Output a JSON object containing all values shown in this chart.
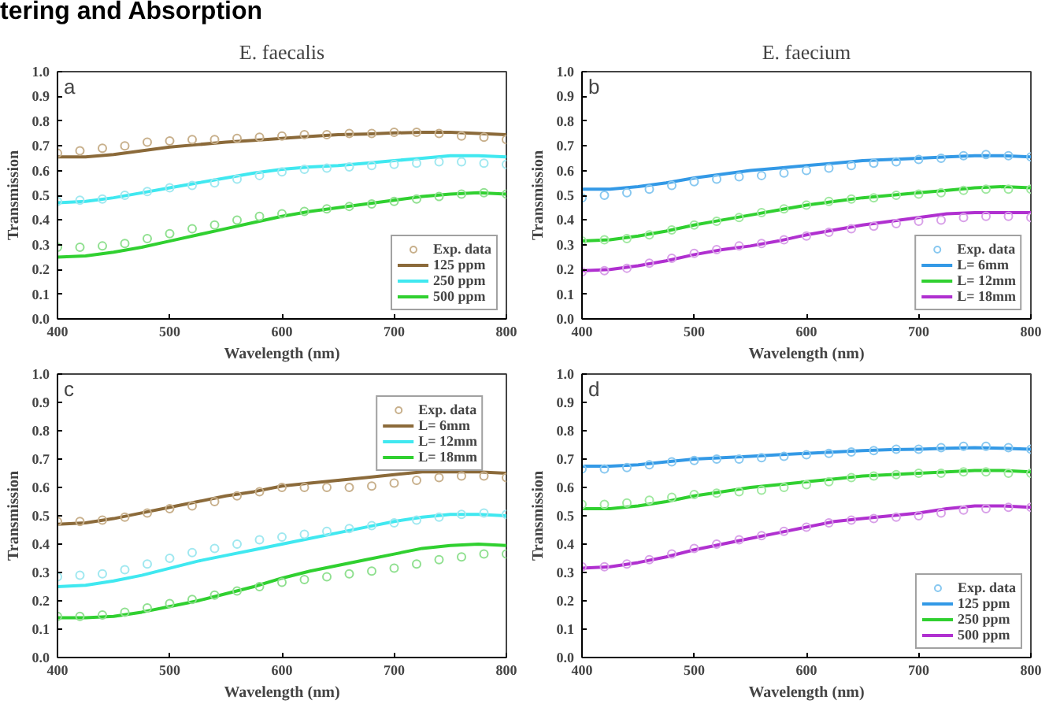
{
  "chart_data": [
    {
      "type": "scatter",
      "title": "tering and Absorption",
      "subtitle": "E. faecalis",
      "xlabel": "Wavelength (nm)",
      "ylabel": "Transmission",
      "annotations": [
        "a"
      ],
      "legend": "bottom right",
      "xlim": [
        400,
        800
      ],
      "ylim": [
        0,
        1
      ],
      "xticks": [
        400,
        500,
        600,
        700,
        800
      ],
      "yticks": [
        {
          "value": 0,
          "label": "0.0"
        },
        {
          "value": 0.1,
          "label": "0.1"
        },
        {
          "value": 0.2,
          "label": "0.2"
        },
        {
          "value": 0.3,
          "label": "0.3"
        },
        {
          "value": 0.4,
          "label": "0.4"
        },
        {
          "value": 0.5,
          "label": "0.5"
        },
        {
          "value": 0.6,
          "label": "0.6"
        },
        {
          "value": 0.7,
          "label": "0.7"
        },
        {
          "value": 0.8,
          "label": "0.8"
        },
        {
          "value": 0.9,
          "label": "0.9"
        },
        {
          "value": 1,
          "label": "1.0"
        }
      ],
      "grid": false,
      "series": [
        {
          "name": "Exp. data",
          "marker": "circle",
          "color": "#c8b08c",
          "x": [
            400,
            420,
            440,
            460,
            480,
            500,
            520,
            540,
            560,
            580,
            600,
            620,
            640,
            660,
            680,
            700,
            720,
            740,
            760,
            780,
            800
          ],
          "values": [
            0.67,
            0.68,
            0.69,
            0.7,
            0.715,
            0.72,
            0.725,
            0.725,
            0.73,
            0.735,
            0.74,
            0.745,
            0.745,
            0.75,
            0.75,
            0.755,
            0.755,
            0.75,
            0.74,
            0.735,
            0.725
          ]
        },
        {
          "marker": "circle",
          "color": "#a0e8f0",
          "x": [
            400,
            420,
            440,
            460,
            480,
            500,
            520,
            540,
            560,
            580,
            600,
            620,
            640,
            660,
            680,
            700,
            720,
            740,
            760,
            780,
            800
          ],
          "values": [
            0.475,
            0.48,
            0.485,
            0.5,
            0.515,
            0.53,
            0.54,
            0.55,
            0.565,
            0.58,
            0.595,
            0.605,
            0.61,
            0.615,
            0.62,
            0.625,
            0.63,
            0.635,
            0.635,
            0.63,
            0.625
          ]
        },
        {
          "marker": "circle",
          "color": "#90e090",
          "x": [
            400,
            420,
            440,
            460,
            480,
            500,
            520,
            540,
            560,
            580,
            600,
            620,
            640,
            660,
            680,
            700,
            720,
            740,
            760,
            780,
            800
          ],
          "values": [
            0.29,
            0.29,
            0.295,
            0.305,
            0.325,
            0.345,
            0.365,
            0.38,
            0.4,
            0.415,
            0.425,
            0.435,
            0.445,
            0.455,
            0.465,
            0.475,
            0.485,
            0.495,
            0.505,
            0.51,
            0.505
          ]
        },
        {
          "name": "125 ppm",
          "type": "line",
          "color": "#8b6a3a",
          "x": [
            400,
            425,
            450,
            475,
            500,
            525,
            550,
            575,
            600,
            625,
            650,
            675,
            700,
            725,
            750,
            775,
            800
          ],
          "values": [
            0.655,
            0.655,
            0.665,
            0.68,
            0.695,
            0.705,
            0.715,
            0.722,
            0.73,
            0.738,
            0.745,
            0.748,
            0.752,
            0.755,
            0.755,
            0.75,
            0.745
          ]
        },
        {
          "name": "250 ppm",
          "type": "line",
          "color": "#40e8f0",
          "x": [
            400,
            425,
            450,
            475,
            500,
            525,
            550,
            575,
            600,
            625,
            650,
            675,
            700,
            725,
            750,
            775,
            800
          ],
          "values": [
            0.47,
            0.475,
            0.49,
            0.51,
            0.53,
            0.55,
            0.57,
            0.59,
            0.605,
            0.615,
            0.62,
            0.63,
            0.64,
            0.65,
            0.66,
            0.66,
            0.655
          ]
        },
        {
          "name": "500 ppm",
          "type": "line",
          "color": "#30d030",
          "x": [
            400,
            425,
            450,
            475,
            500,
            525,
            550,
            575,
            600,
            625,
            650,
            675,
            700,
            725,
            750,
            775,
            800
          ],
          "values": [
            0.25,
            0.255,
            0.27,
            0.29,
            0.315,
            0.34,
            0.365,
            0.39,
            0.415,
            0.435,
            0.45,
            0.465,
            0.48,
            0.495,
            0.505,
            0.51,
            0.505
          ]
        }
      ]
    },
    {
      "type": "scatter",
      "subtitle": "E. faecium",
      "xlabel": "Wavelength (nm)",
      "ylabel": "Transmission",
      "annotations": [
        "b"
      ],
      "legend": "bottom right",
      "xlim": [
        400,
        800
      ],
      "ylim": [
        0,
        1
      ],
      "xticks": [
        400,
        500,
        600,
        700,
        800
      ],
      "yticks": [
        {
          "value": 0,
          "label": "0.0"
        },
        {
          "value": 0.1,
          "label": "0.1"
        },
        {
          "value": 0.2,
          "label": "0.2"
        },
        {
          "value": 0.3,
          "label": "0.3"
        },
        {
          "value": 0.4,
          "label": "0.4"
        },
        {
          "value": 0.5,
          "label": "0.5"
        },
        {
          "value": 0.6,
          "label": "0.6"
        },
        {
          "value": 0.7,
          "label": "0.7"
        },
        {
          "value": 0.8,
          "label": "0.8"
        },
        {
          "value": 0.9,
          "label": "0.9"
        },
        {
          "value": 1,
          "label": "1.0"
        }
      ],
      "grid": false,
      "series": [
        {
          "name": "Exp. data",
          "marker": "circle",
          "color": "#88c8f0",
          "x": [
            400,
            420,
            440,
            460,
            480,
            500,
            520,
            540,
            560,
            580,
            600,
            620,
            640,
            660,
            680,
            700,
            720,
            740,
            760,
            780,
            800
          ],
          "values": [
            0.49,
            0.5,
            0.51,
            0.525,
            0.54,
            0.555,
            0.565,
            0.575,
            0.58,
            0.59,
            0.6,
            0.61,
            0.62,
            0.63,
            0.635,
            0.645,
            0.65,
            0.66,
            0.665,
            0.66,
            0.655
          ]
        },
        {
          "marker": "circle",
          "color": "#a0e8a0",
          "x": [
            400,
            420,
            440,
            460,
            480,
            500,
            520,
            540,
            560,
            580,
            600,
            620,
            640,
            660,
            680,
            700,
            720,
            740,
            760,
            780,
            800
          ],
          "values": [
            0.315,
            0.32,
            0.325,
            0.34,
            0.36,
            0.38,
            0.395,
            0.41,
            0.43,
            0.445,
            0.46,
            0.475,
            0.485,
            0.49,
            0.5,
            0.505,
            0.51,
            0.52,
            0.525,
            0.525,
            0.525
          ]
        },
        {
          "marker": "circle",
          "color": "#d8a0e8",
          "x": [
            400,
            420,
            440,
            460,
            480,
            500,
            520,
            540,
            560,
            580,
            600,
            620,
            640,
            660,
            680,
            700,
            720,
            740,
            760,
            780,
            800
          ],
          "values": [
            0.19,
            0.195,
            0.205,
            0.225,
            0.245,
            0.265,
            0.28,
            0.295,
            0.305,
            0.32,
            0.335,
            0.35,
            0.365,
            0.375,
            0.385,
            0.395,
            0.4,
            0.41,
            0.415,
            0.415,
            0.41
          ]
        },
        {
          "name": "L= 6mm",
          "type": "line",
          "color": "#3399e6",
          "x": [
            400,
            425,
            450,
            475,
            500,
            525,
            550,
            575,
            600,
            625,
            650,
            675,
            700,
            725,
            750,
            775,
            800
          ],
          "values": [
            0.525,
            0.525,
            0.535,
            0.55,
            0.57,
            0.585,
            0.6,
            0.61,
            0.62,
            0.63,
            0.64,
            0.645,
            0.65,
            0.655,
            0.66,
            0.66,
            0.655
          ]
        },
        {
          "name": "L= 12mm",
          "type": "line",
          "color": "#30d030",
          "x": [
            400,
            425,
            450,
            475,
            500,
            525,
            550,
            575,
            600,
            625,
            650,
            675,
            700,
            725,
            750,
            775,
            800
          ],
          "values": [
            0.315,
            0.32,
            0.335,
            0.355,
            0.38,
            0.4,
            0.42,
            0.44,
            0.46,
            0.475,
            0.49,
            0.5,
            0.51,
            0.52,
            0.53,
            0.535,
            0.53
          ]
        },
        {
          "name": "L= 18mm",
          "type": "line",
          "color": "#b030d0",
          "x": [
            400,
            425,
            450,
            475,
            500,
            525,
            550,
            575,
            600,
            625,
            650,
            675,
            700,
            725,
            750,
            775,
            800
          ],
          "values": [
            0.195,
            0.2,
            0.215,
            0.235,
            0.26,
            0.28,
            0.295,
            0.315,
            0.34,
            0.36,
            0.38,
            0.395,
            0.41,
            0.425,
            0.43,
            0.43,
            0.43
          ]
        }
      ]
    },
    {
      "type": "scatter",
      "xlabel": "Wavelength (nm)",
      "ylabel": "Transmission",
      "annotations": [
        "c"
      ],
      "legend": "top right",
      "xlim": [
        400,
        800
      ],
      "ylim": [
        0,
        1
      ],
      "xticks": [
        400,
        500,
        600,
        700,
        800
      ],
      "yticks": [
        {
          "value": 0,
          "label": "0.0"
        },
        {
          "value": 0.1,
          "label": "0.1"
        },
        {
          "value": 0.2,
          "label": "0.2"
        },
        {
          "value": 0.3,
          "label": "0.3"
        },
        {
          "value": 0.4,
          "label": "0.4"
        },
        {
          "value": 0.5,
          "label": "0.5"
        },
        {
          "value": 0.6,
          "label": "0.6"
        },
        {
          "value": 0.7,
          "label": "0.7"
        },
        {
          "value": 0.8,
          "label": "0.8"
        },
        {
          "value": 0.9,
          "label": "0.9"
        },
        {
          "value": 1,
          "label": "1.0"
        }
      ],
      "grid": false,
      "series": [
        {
          "name": "Exp. data",
          "marker": "circle",
          "color": "#c8b08c",
          "x": [
            400,
            420,
            440,
            460,
            480,
            500,
            520,
            540,
            560,
            580,
            600,
            620,
            640,
            660,
            680,
            700,
            720,
            740,
            760,
            780,
            800
          ],
          "values": [
            0.48,
            0.48,
            0.485,
            0.495,
            0.51,
            0.525,
            0.535,
            0.55,
            0.57,
            0.585,
            0.6,
            0.6,
            0.6,
            0.6,
            0.605,
            0.615,
            0.625,
            0.635,
            0.64,
            0.64,
            0.635
          ]
        },
        {
          "marker": "circle",
          "color": "#a0e8f0",
          "x": [
            400,
            420,
            440,
            460,
            480,
            500,
            520,
            540,
            560,
            580,
            600,
            620,
            640,
            660,
            680,
            700,
            720,
            740,
            760,
            780,
            800
          ],
          "values": [
            0.285,
            0.29,
            0.295,
            0.31,
            0.33,
            0.35,
            0.37,
            0.385,
            0.4,
            0.415,
            0.425,
            0.435,
            0.445,
            0.455,
            0.465,
            0.475,
            0.485,
            0.495,
            0.505,
            0.51,
            0.505
          ]
        },
        {
          "marker": "circle",
          "color": "#90e090",
          "x": [
            400,
            420,
            440,
            460,
            480,
            500,
            520,
            540,
            560,
            580,
            600,
            620,
            640,
            660,
            680,
            700,
            720,
            740,
            760,
            780,
            800
          ],
          "values": [
            0.145,
            0.145,
            0.15,
            0.16,
            0.175,
            0.19,
            0.205,
            0.22,
            0.235,
            0.25,
            0.265,
            0.275,
            0.285,
            0.295,
            0.305,
            0.315,
            0.33,
            0.345,
            0.355,
            0.365,
            0.365
          ]
        },
        {
          "name": "L= 6mm",
          "type": "line",
          "color": "#8b6a3a",
          "x": [
            400,
            425,
            450,
            475,
            500,
            525,
            550,
            575,
            600,
            625,
            650,
            675,
            700,
            725,
            750,
            775,
            800
          ],
          "values": [
            0.47,
            0.475,
            0.49,
            0.51,
            0.53,
            0.55,
            0.57,
            0.585,
            0.605,
            0.615,
            0.625,
            0.635,
            0.645,
            0.655,
            0.655,
            0.655,
            0.65
          ]
        },
        {
          "name": "L= 12mm",
          "type": "line",
          "color": "#40e8f0",
          "x": [
            400,
            425,
            450,
            475,
            500,
            525,
            550,
            575,
            600,
            625,
            650,
            675,
            700,
            725,
            750,
            775,
            800
          ],
          "values": [
            0.25,
            0.255,
            0.27,
            0.29,
            0.315,
            0.34,
            0.36,
            0.38,
            0.4,
            0.42,
            0.44,
            0.46,
            0.48,
            0.495,
            0.505,
            0.505,
            0.5
          ]
        },
        {
          "name": "L= 18mm",
          "type": "line",
          "color": "#30d030",
          "x": [
            400,
            425,
            450,
            475,
            500,
            525,
            550,
            575,
            600,
            625,
            650,
            675,
            700,
            725,
            750,
            775,
            800
          ],
          "values": [
            0.14,
            0.14,
            0.145,
            0.16,
            0.18,
            0.2,
            0.225,
            0.25,
            0.28,
            0.305,
            0.325,
            0.345,
            0.365,
            0.385,
            0.395,
            0.4,
            0.395
          ]
        }
      ]
    },
    {
      "type": "scatter",
      "xlabel": "Wavelength (nm)",
      "ylabel": "Transmission",
      "annotations": [
        "d"
      ],
      "legend": "bottom right",
      "xlim": [
        400,
        800
      ],
      "ylim": [
        0,
        1
      ],
      "xticks": [
        400,
        500,
        600,
        700,
        800
      ],
      "yticks": [
        {
          "value": 0,
          "label": "0.0"
        },
        {
          "value": 0.1,
          "label": "0.1"
        },
        {
          "value": 0.2,
          "label": "0.2"
        },
        {
          "value": 0.3,
          "label": "0.3"
        },
        {
          "value": 0.4,
          "label": "0.4"
        },
        {
          "value": 0.5,
          "label": "0.5"
        },
        {
          "value": 0.6,
          "label": "0.6"
        },
        {
          "value": 0.7,
          "label": "0.7"
        },
        {
          "value": 0.8,
          "label": "0.8"
        },
        {
          "value": 0.9,
          "label": "0.9"
        },
        {
          "value": 1,
          "label": "1.0"
        }
      ],
      "grid": false,
      "series": [
        {
          "name": "Exp. data",
          "marker": "circle",
          "color": "#88c8f0",
          "x": [
            400,
            420,
            440,
            460,
            480,
            500,
            520,
            540,
            560,
            580,
            600,
            620,
            640,
            660,
            680,
            700,
            720,
            740,
            760,
            780,
            800
          ],
          "values": [
            0.665,
            0.665,
            0.67,
            0.68,
            0.69,
            0.695,
            0.7,
            0.7,
            0.705,
            0.71,
            0.715,
            0.72,
            0.725,
            0.73,
            0.735,
            0.735,
            0.74,
            0.745,
            0.745,
            0.74,
            0.735
          ]
        },
        {
          "marker": "circle",
          "color": "#a0e8a0",
          "x": [
            400,
            420,
            440,
            460,
            480,
            500,
            520,
            540,
            560,
            580,
            600,
            620,
            640,
            660,
            680,
            700,
            720,
            740,
            760,
            780,
            800
          ],
          "values": [
            0.54,
            0.54,
            0.545,
            0.555,
            0.565,
            0.575,
            0.58,
            0.585,
            0.59,
            0.6,
            0.61,
            0.62,
            0.635,
            0.64,
            0.645,
            0.65,
            0.65,
            0.655,
            0.655,
            0.65,
            0.65
          ]
        },
        {
          "marker": "circle",
          "color": "#d8a0e8",
          "x": [
            400,
            420,
            440,
            460,
            480,
            500,
            520,
            540,
            560,
            580,
            600,
            620,
            640,
            660,
            680,
            700,
            720,
            740,
            760,
            780,
            800
          ],
          "values": [
            0.32,
            0.32,
            0.33,
            0.345,
            0.365,
            0.385,
            0.4,
            0.415,
            0.43,
            0.445,
            0.46,
            0.475,
            0.485,
            0.49,
            0.495,
            0.5,
            0.51,
            0.52,
            0.525,
            0.53,
            0.53
          ]
        },
        {
          "name": "125 ppm",
          "type": "line",
          "color": "#3399e6",
          "x": [
            400,
            425,
            450,
            475,
            500,
            525,
            550,
            575,
            600,
            625,
            650,
            675,
            700,
            725,
            750,
            775,
            800
          ],
          "values": [
            0.675,
            0.675,
            0.68,
            0.69,
            0.7,
            0.705,
            0.71,
            0.715,
            0.72,
            0.725,
            0.73,
            0.733,
            0.735,
            0.738,
            0.74,
            0.738,
            0.735
          ]
        },
        {
          "name": "250 ppm",
          "type": "line",
          "color": "#30d030",
          "x": [
            400,
            425,
            450,
            475,
            500,
            525,
            550,
            575,
            600,
            625,
            650,
            675,
            700,
            725,
            750,
            775,
            800
          ],
          "values": [
            0.525,
            0.525,
            0.535,
            0.55,
            0.57,
            0.585,
            0.6,
            0.61,
            0.62,
            0.63,
            0.64,
            0.645,
            0.65,
            0.655,
            0.66,
            0.66,
            0.655
          ]
        },
        {
          "name": "500 ppm",
          "type": "line",
          "color": "#b030d0",
          "x": [
            400,
            425,
            450,
            475,
            500,
            525,
            550,
            575,
            600,
            625,
            650,
            675,
            700,
            725,
            750,
            775,
            800
          ],
          "values": [
            0.315,
            0.32,
            0.335,
            0.355,
            0.38,
            0.4,
            0.42,
            0.44,
            0.46,
            0.48,
            0.49,
            0.5,
            0.51,
            0.525,
            0.535,
            0.535,
            0.53
          ]
        }
      ]
    }
  ]
}
